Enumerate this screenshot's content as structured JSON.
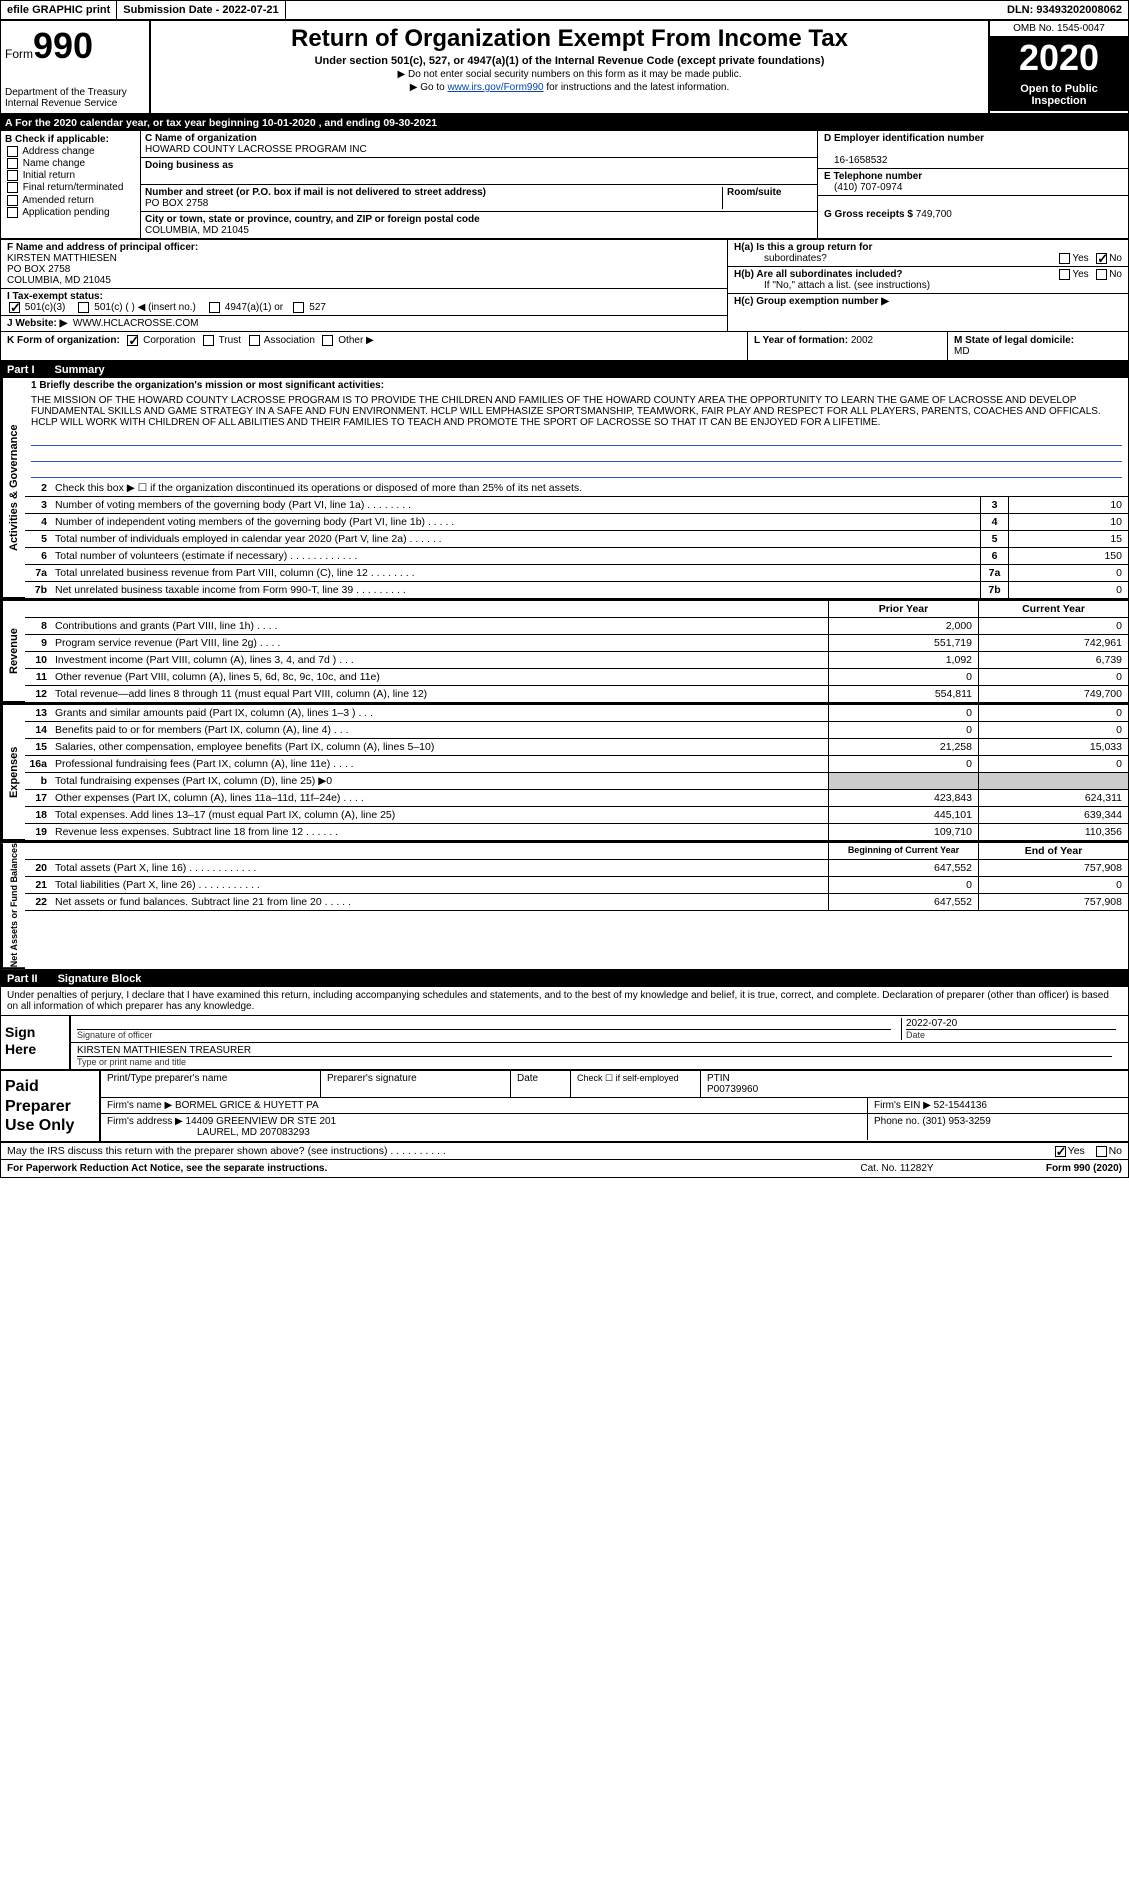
{
  "topbar": {
    "efile": "efile GRAPHIC print",
    "submission_label": "Submission Date - ",
    "submission_date": "2022-07-21",
    "dln_label": "DLN: ",
    "dln": "93493202008062"
  },
  "header": {
    "form_word": "Form",
    "form_number": "990",
    "dept": "Department of the Treasury\nInternal Revenue Service",
    "title": "Return of Organization Exempt From Income Tax",
    "subtitle": "Under section 501(c), 527, or 4947(a)(1) of the Internal Revenue Code (except private foundations)",
    "note1": "▶ Do not enter social security numbers on this form as it may be made public.",
    "note2_pre": "▶ Go to ",
    "note2_link": "www.irs.gov/Form990",
    "note2_post": " for instructions and the latest information.",
    "omb": "OMB No. 1545-0047",
    "year": "2020",
    "open": "Open to Public Inspection"
  },
  "period": "A   For the 2020 calendar year, or tax year beginning 10-01-2020    , and ending 09-30-2021",
  "boxB": {
    "label": "B Check if applicable:",
    "opts": [
      "Address change",
      "Name change",
      "Initial return",
      "Final return/terminated",
      "Amended return",
      "Application pending"
    ]
  },
  "boxC": {
    "name_lbl": "C Name of organization",
    "name": "HOWARD COUNTY LACROSSE PROGRAM INC",
    "dba_lbl": "Doing business as",
    "dba": "",
    "street_lbl": "Number and street (or P.O. box if mail is not delivered to street address)",
    "street": "PO BOX 2758",
    "room_lbl": "Room/suite",
    "city_lbl": "City or town, state or province, country, and ZIP or foreign postal code",
    "city": "COLUMBIA, MD  21045"
  },
  "boxD": {
    "lbl": "D Employer identification number",
    "val": "16-1658532"
  },
  "boxE": {
    "lbl": "E Telephone number",
    "val": "(410) 707-0974"
  },
  "boxG": {
    "lbl": "G Gross receipts $ ",
    "val": "749,700"
  },
  "boxF": {
    "lbl": "F  Name and address of principal officer:",
    "name": "KIRSTEN MATTHIESEN",
    "addr1": "PO BOX 2758",
    "addr2": "COLUMBIA, MD  21045"
  },
  "boxI": {
    "lbl": "I   Tax-exempt status:",
    "o1": "501(c)(3)",
    "o2": "501(c) (  ) ◀ (insert no.)",
    "o3": "4947(a)(1) or",
    "o4": "527"
  },
  "boxJ": {
    "lbl": "J   Website: ▶",
    "val": "WWW.HCLACROSSE.COM"
  },
  "boxH": {
    "a_lbl": "H(a)  Is this a group return for",
    "a_sub": "subordinates?",
    "a_yes": "Yes",
    "a_no": "No",
    "b_lbl": "H(b)  Are all subordinates included?",
    "b_note": "If \"No,\" attach a list. (see instructions)",
    "c_lbl": "H(c)  Group exemption number ▶"
  },
  "boxK": {
    "lbl": "K Form of organization:",
    "o1": "Corporation",
    "o2": "Trust",
    "o3": "Association",
    "o4": "Other ▶"
  },
  "boxL": {
    "lbl": "L Year of formation: ",
    "val": "2002"
  },
  "boxM": {
    "lbl": "M State of legal domicile:",
    "val": "MD"
  },
  "part1": {
    "partno": "Part I",
    "title": "Summary"
  },
  "mission": {
    "lbl": "1   Briefly describe the organization's mission or most significant activities:",
    "text": "THE MISSION OF THE HOWARD COUNTY LACROSSE PROGRAM IS TO PROVIDE THE CHILDREN AND FAMILIES OF THE HOWARD COUNTY AREA THE OPPORTUNITY TO LEARN THE GAME OF LACROSSE AND DEVELOP FUNDAMENTAL SKILLS AND GAME STRATEGY IN A SAFE AND FUN ENVIRONMENT. HCLP WILL EMPHASIZE SPORTSMANSHIP, TEAMWORK, FAIR PLAY AND RESPECT FOR ALL PLAYERS, PARENTS, COACHES AND OFFICALS. HCLP WILL WORK WITH CHILDREN OF ALL ABILITIES AND THEIR FAMILIES TO TEACH AND PROMOTE THE SPORT OF LACROSSE SO THAT IT CAN BE ENJOYED FOR A LIFETIME."
  },
  "lines_gov": {
    "l2": "Check this box ▶ ☐  if the organization discontinued its operations or disposed of more than 25% of its net assets.",
    "rows": [
      {
        "n": "3",
        "t": "Number of voting members of the governing body (Part VI, line 1a)   .    .    .    .    .    .    .    .",
        "v": "10"
      },
      {
        "n": "4",
        "t": "Number of independent voting members of the governing body (Part VI, line 1b)    .    .    .    .    .",
        "v": "10"
      },
      {
        "n": "5",
        "t": "Total number of individuals employed in calendar year 2020 (Part V, line 2a)    .    .    .    .    .    .",
        "v": "15"
      },
      {
        "n": "6",
        "t": "Total number of volunteers (estimate if necessary)    .    .    .    .    .    .    .    .    .    .    .    .",
        "v": "150"
      },
      {
        "n": "7a",
        "t": "Total unrelated business revenue from Part VIII, column (C), line 12    .    .    .    .    .    .    .    .",
        "v": "0"
      },
      {
        "n": "7b",
        "t": "Net unrelated business taxable income from Form 990-T, line 39     .    .    .    .    .    .    .    .    .",
        "v": "0"
      }
    ]
  },
  "col_hdrs": {
    "prior": "Prior Year",
    "current": "Current Year",
    "boy": "Beginning of Current Year",
    "eoy": "End of Year"
  },
  "lines_rev": [
    {
      "n": "8",
      "t": "Contributions and grants (Part VIII, line 1h)    .    .    .    .",
      "p": "2,000",
      "c": "0"
    },
    {
      "n": "9",
      "t": "Program service revenue (Part VIII, line 2g)    .    .    .    .",
      "p": "551,719",
      "c": "742,961"
    },
    {
      "n": "10",
      "t": "Investment income (Part VIII, column (A), lines 3, 4, and 7d )    .    .    .",
      "p": "1,092",
      "c": "6,739"
    },
    {
      "n": "11",
      "t": "Other revenue (Part VIII, column (A), lines 5, 6d, 8c, 9c, 10c, and 11e)",
      "p": "0",
      "c": "0"
    },
    {
      "n": "12",
      "t": "Total revenue—add lines 8 through 11 (must equal Part VIII, column (A), line 12)",
      "p": "554,811",
      "c": "749,700"
    }
  ],
  "lines_exp": [
    {
      "n": "13",
      "t": "Grants and similar amounts paid (Part IX, column (A), lines 1–3 )    .    .    .",
      "p": "0",
      "c": "0"
    },
    {
      "n": "14",
      "t": "Benefits paid to or for members (Part IX, column (A), line 4)    .    .    .",
      "p": "0",
      "c": "0"
    },
    {
      "n": "15",
      "t": "Salaries, other compensation, employee benefits (Part IX, column (A), lines 5–10)",
      "p": "21,258",
      "c": "15,033"
    },
    {
      "n": "16a",
      "t": "Professional fundraising fees (Part IX, column (A), line 11e)    .    .    .    .",
      "p": "0",
      "c": "0"
    },
    {
      "n": "b",
      "t": "Total fundraising expenses (Part IX, column (D), line 25) ▶0",
      "p": "",
      "c": "",
      "shade": true
    },
    {
      "n": "17",
      "t": "Other expenses (Part IX, column (A), lines 11a–11d, 11f–24e)    .    .    .    .",
      "p": "423,843",
      "c": "624,311"
    },
    {
      "n": "18",
      "t": "Total expenses. Add lines 13–17 (must equal Part IX, column (A), line 25)",
      "p": "445,101",
      "c": "639,344"
    },
    {
      "n": "19",
      "t": "Revenue less expenses. Subtract line 18 from line 12   .    .    .    .    .    .",
      "p": "109,710",
      "c": "110,356"
    }
  ],
  "lines_net": [
    {
      "n": "20",
      "t": "Total assets (Part X, line 16)    .    .    .    .    .    .    .    .    .    .    .    .",
      "p": "647,552",
      "c": "757,908"
    },
    {
      "n": "21",
      "t": "Total liabilities (Part X, line 26)    .    .    .    .    .    .    .    .    .    .    .",
      "p": "0",
      "c": "0"
    },
    {
      "n": "22",
      "t": "Net assets or fund balances. Subtract line 21 from line 20   .    .    .    .    .",
      "p": "647,552",
      "c": "757,908"
    }
  ],
  "side": {
    "gov": "Activities & Governance",
    "rev": "Revenue",
    "exp": "Expenses",
    "net": "Net Assets or Fund Balances"
  },
  "part2": {
    "partno": "Part II",
    "title": "Signature Block"
  },
  "sig": {
    "decl": "Under penalties of perjury, I declare that I have examined this return, including accompanying schedules and statements, and to the best of my knowledge and belief, it is true, correct, and complete. Declaration of preparer (other than officer) is based on all information of which preparer has any knowledge.",
    "here": "Sign Here",
    "sig_lbl": "Signature of officer",
    "date_lbl": "Date",
    "date": "2022-07-20",
    "name": "KIRSTEN MATTHIESEN  TREASURER",
    "name_lbl": "Type or print name and title"
  },
  "paid": {
    "lbl": "Paid Preparer Use Only",
    "h1": "Print/Type preparer's name",
    "h2": "Preparer's signature",
    "h3": "Date",
    "h4": "Check ☐ if self-employed",
    "h5_lbl": "PTIN",
    "h5_val": "P00739960",
    "firm_lbl": "Firm's name      ▶ ",
    "firm": "BORMEL GRICE & HUYETT PA",
    "ein_lbl": "Firm's EIN ▶ ",
    "ein": "52-1544136",
    "addr_lbl": "Firm's address ▶ ",
    "addr1": "14409 GREENVIEW DR STE 201",
    "addr2": "LAUREL, MD  207083293",
    "phone_lbl": "Phone no. ",
    "phone": "(301) 953-3259"
  },
  "discuss": {
    "q": "May the IRS discuss this return with the preparer shown above? (see instructions)    .    .    .    .    .    .    .    .    .    .",
    "yes": "Yes",
    "no": "No"
  },
  "footer": {
    "left": "For Paperwork Reduction Act Notice, see the separate instructions.",
    "mid": "Cat. No. 11282Y",
    "right": "Form 990 (2020)"
  }
}
